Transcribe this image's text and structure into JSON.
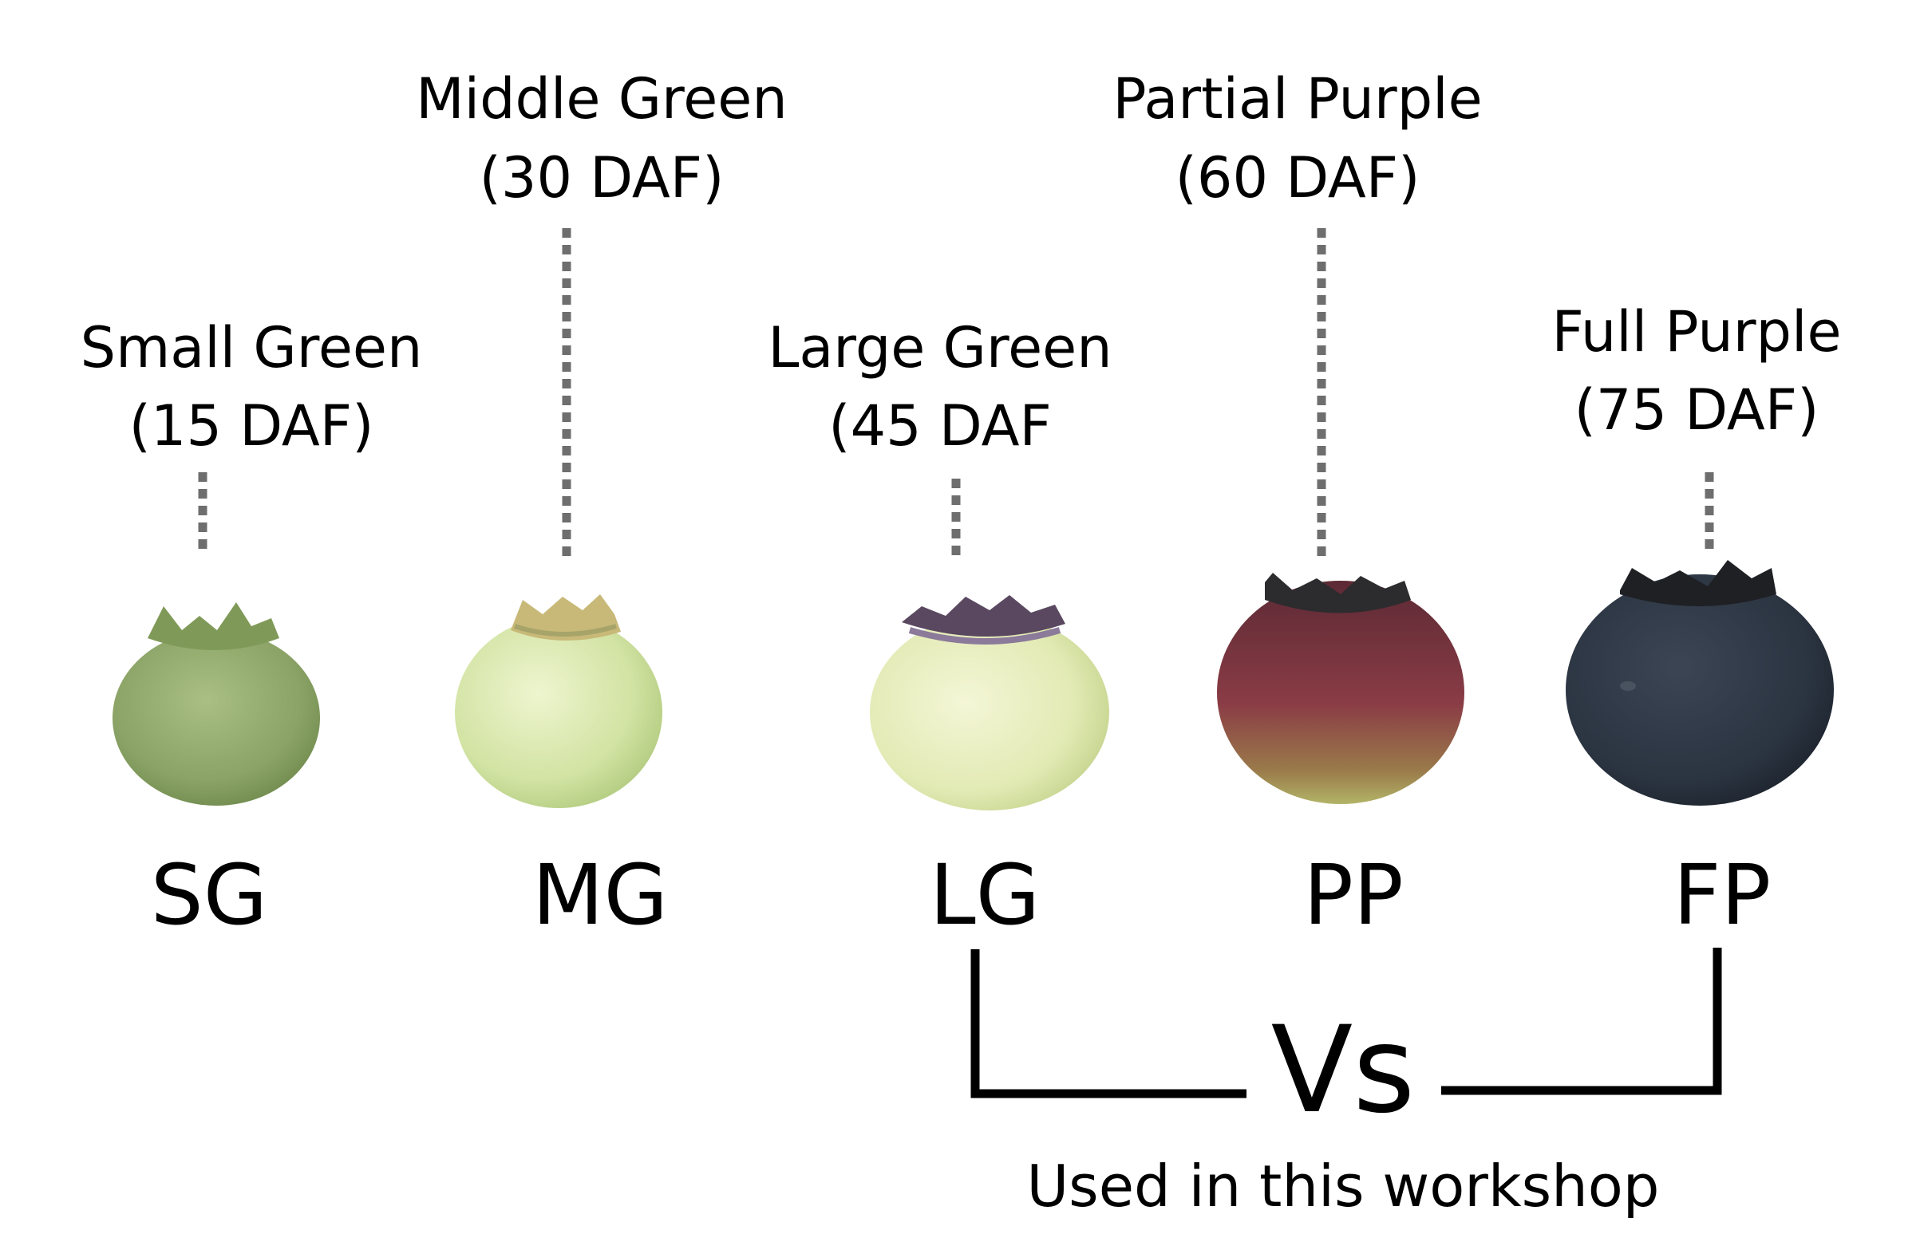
{
  "stages": [
    {
      "name": "Small Green",
      "daf": "(15 DAF)",
      "abbr": "SG"
    },
    {
      "name": "Middle Green",
      "daf": "(30 DAF)",
      "abbr": "MG"
    },
    {
      "name": "Large Green",
      "daf": "(45 DAF",
      "abbr": "LG"
    },
    {
      "name": "Partial Purple",
      "daf": "(60 DAF)",
      "abbr": "PP"
    },
    {
      "name": "Full Purple",
      "daf": "(75 DAF)",
      "abbr": "FP"
    }
  ],
  "comparison": {
    "vs_label": "Vs",
    "note": "Used in this workshop"
  },
  "colors": {
    "small_green": "#8fa86a",
    "middle_green": "#d6e6a9",
    "large_green": "#e4ebba",
    "partial_purple": "#7d3a45",
    "full_purple": "#2c3542",
    "leader": "#6e6e6e"
  }
}
